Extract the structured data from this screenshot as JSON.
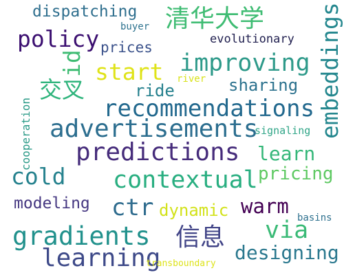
{
  "words": {
    "dispatching": "dispatching",
    "qinghua": "清华大学",
    "embeddings": "embeddings",
    "buyer": "buyer",
    "policy": "policy",
    "id": "id",
    "evolutionary": "evolutionary",
    "prices": "prices",
    "improving": "improving",
    "start": "start",
    "river": "river",
    "sharing": "sharing",
    "jiaocha": "交叉",
    "ride": "ride",
    "cooperation": "cooperation",
    "recommendations": "recommendations",
    "signaling": "signaling",
    "advertisements": "advertisements",
    "predictions": "predictions",
    "learn": "learn",
    "cold": "cold",
    "contextual": "contextual",
    "pricing": "pricing",
    "modeling": "modeling",
    "ctr": "ctr",
    "warm": "warm",
    "dynamic": "dynamic",
    "basins": "basins",
    "gradients": "gradients",
    "via": "via",
    "xinxi": "信息",
    "learning": "learning",
    "designing": "designing",
    "transboundary": "transboundary"
  }
}
